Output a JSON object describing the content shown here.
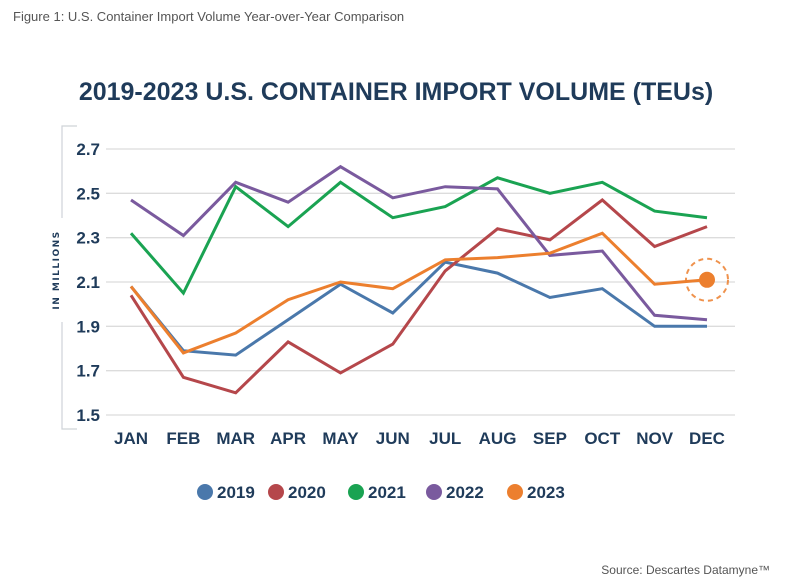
{
  "figure_caption": "Figure 1: U.S. Container Import Volume Year-over-Year Comparison",
  "source": "Source: Descartes Datamyne™",
  "chart_data": {
    "type": "line",
    "title": "2019-2023 U.S. CONTAINER IMPORT VOLUME (TEUs)",
    "xlabel": "",
    "ylabel": "IN MILLIONS",
    "ylim": [
      1.5,
      2.7
    ],
    "yticks": [
      1.5,
      1.7,
      1.9,
      2.1,
      2.3,
      2.5,
      2.7
    ],
    "ytick_labels": [
      "1.5",
      "1.7",
      "1.9",
      "2.1",
      "2.3",
      "2.5",
      "2.7"
    ],
    "grid": true,
    "legend_position": "bottom",
    "categories": [
      "JAN",
      "FEB",
      "MAR",
      "APR",
      "MAY",
      "JUN",
      "JUL",
      "AUG",
      "SEP",
      "OCT",
      "NOV",
      "DEC"
    ],
    "series": [
      {
        "name": "2019",
        "color": "#4a78ab",
        "values": [
          2.08,
          1.79,
          1.77,
          1.93,
          2.09,
          1.96,
          2.19,
          2.14,
          2.03,
          2.07,
          1.9,
          1.9
        ]
      },
      {
        "name": "2020",
        "color": "#b5474b",
        "values": [
          2.04,
          1.67,
          1.6,
          1.83,
          1.69,
          1.82,
          2.15,
          2.34,
          2.29,
          2.47,
          2.26,
          2.35
        ]
      },
      {
        "name": "2021",
        "color": "#1aa352",
        "values": [
          2.32,
          2.05,
          2.53,
          2.35,
          2.55,
          2.39,
          2.44,
          2.57,
          2.5,
          2.55,
          2.42,
          2.39
        ]
      },
      {
        "name": "2022",
        "color": "#7a5a9e",
        "values": [
          2.47,
          2.31,
          2.55,
          2.46,
          2.62,
          2.48,
          2.53,
          2.52,
          2.22,
          2.24,
          1.95,
          1.93
        ]
      },
      {
        "name": "2023",
        "color": "#ec7f2e",
        "values": [
          2.08,
          1.78,
          1.87,
          2.02,
          2.1,
          2.07,
          2.2,
          2.21,
          2.23,
          2.32,
          2.09,
          2.11
        ]
      }
    ],
    "annotations": [
      {
        "type": "highlight-marker",
        "series": "2023",
        "category": "DEC",
        "value": 2.11
      }
    ]
  }
}
